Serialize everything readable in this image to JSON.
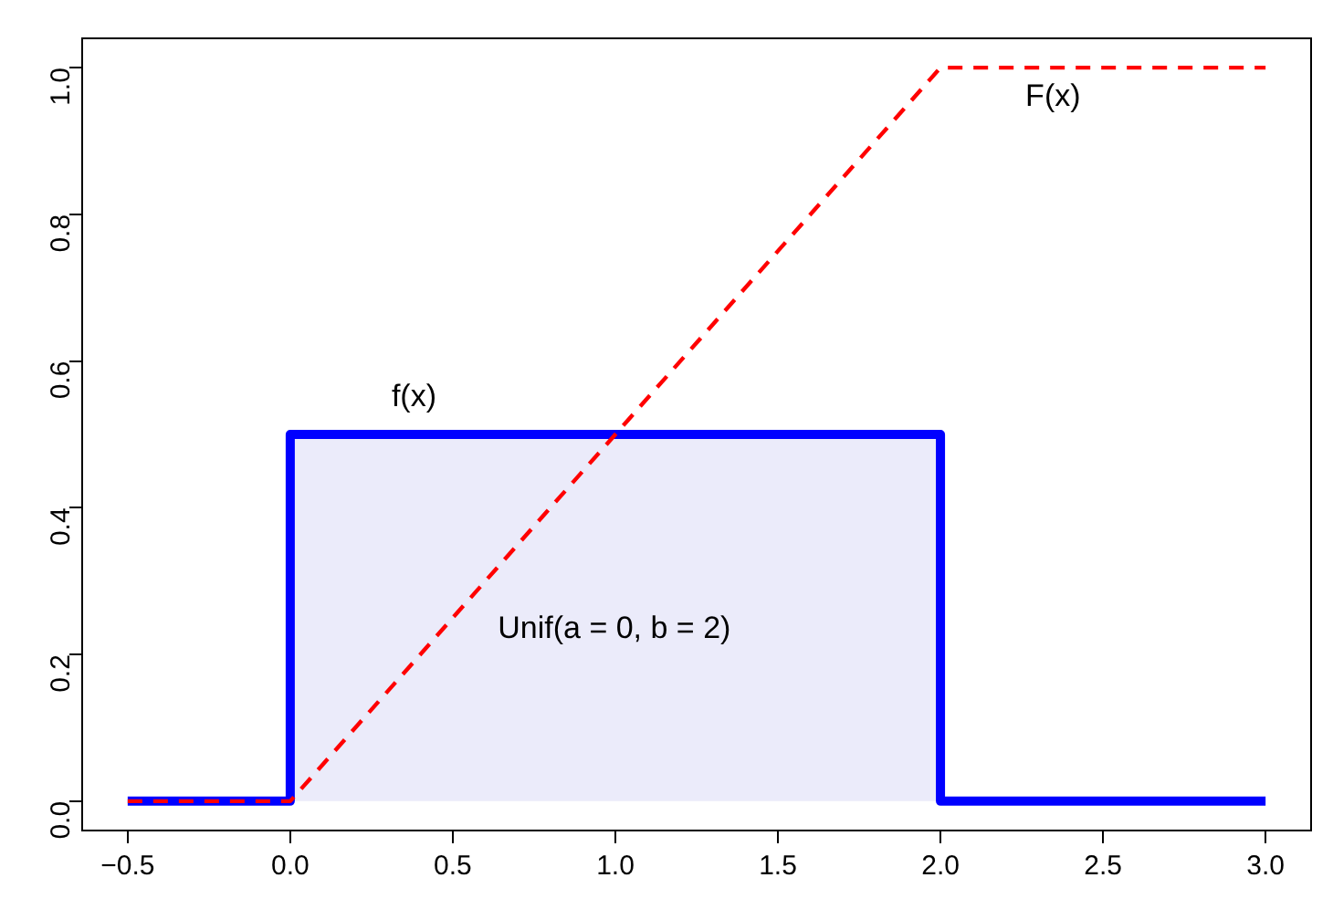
{
  "chart_data": {
    "type": "step",
    "series": [
      {
        "type": "area",
        "x": [
          0,
          2
        ],
        "values": [
          0.5,
          0.5
        ],
        "color": "#ebebfa"
      },
      {
        "x": [
          -0.5,
          0,
          2,
          3
        ],
        "values": [
          0,
          0.5,
          0,
          0
        ],
        "color": "#0000ff"
      },
      {
        "type": "line",
        "x": [
          -0.5,
          0,
          2,
          3
        ],
        "values": [
          0,
          0,
          1,
          1
        ],
        "color": "#ff0000",
        "line_style": "dashed"
      }
    ],
    "xlim": [
      -0.64,
      3.14
    ],
    "ylim": [
      -0.04,
      1.04
    ],
    "xticks": [
      {
        "value": -0.5,
        "label": "−0.5"
      },
      {
        "value": 0,
        "label": "0.0"
      },
      {
        "value": 0.5,
        "label": "0.5"
      },
      {
        "value": 1,
        "label": "1.0"
      },
      {
        "value": 1.5,
        "label": "1.5"
      },
      {
        "value": 2,
        "label": "2.0"
      },
      {
        "value": 2.5,
        "label": "2.5"
      },
      {
        "value": 3,
        "label": "3.0"
      }
    ],
    "yticks": [
      {
        "value": 0,
        "label": "0.0"
      },
      {
        "value": 0.2,
        "label": "0.2"
      },
      {
        "value": 0.4,
        "label": "0.4"
      },
      {
        "value": 0.6,
        "label": "0.6"
      },
      {
        "value": 0.8,
        "label": "0.8"
      },
      {
        "value": 1,
        "label": "1.0"
      }
    ],
    "grid": false,
    "legend": false,
    "marker": "none",
    "annotations": [
      "f(x)",
      "F(x)",
      "Unif(a = 0, b = 2)"
    ]
  }
}
